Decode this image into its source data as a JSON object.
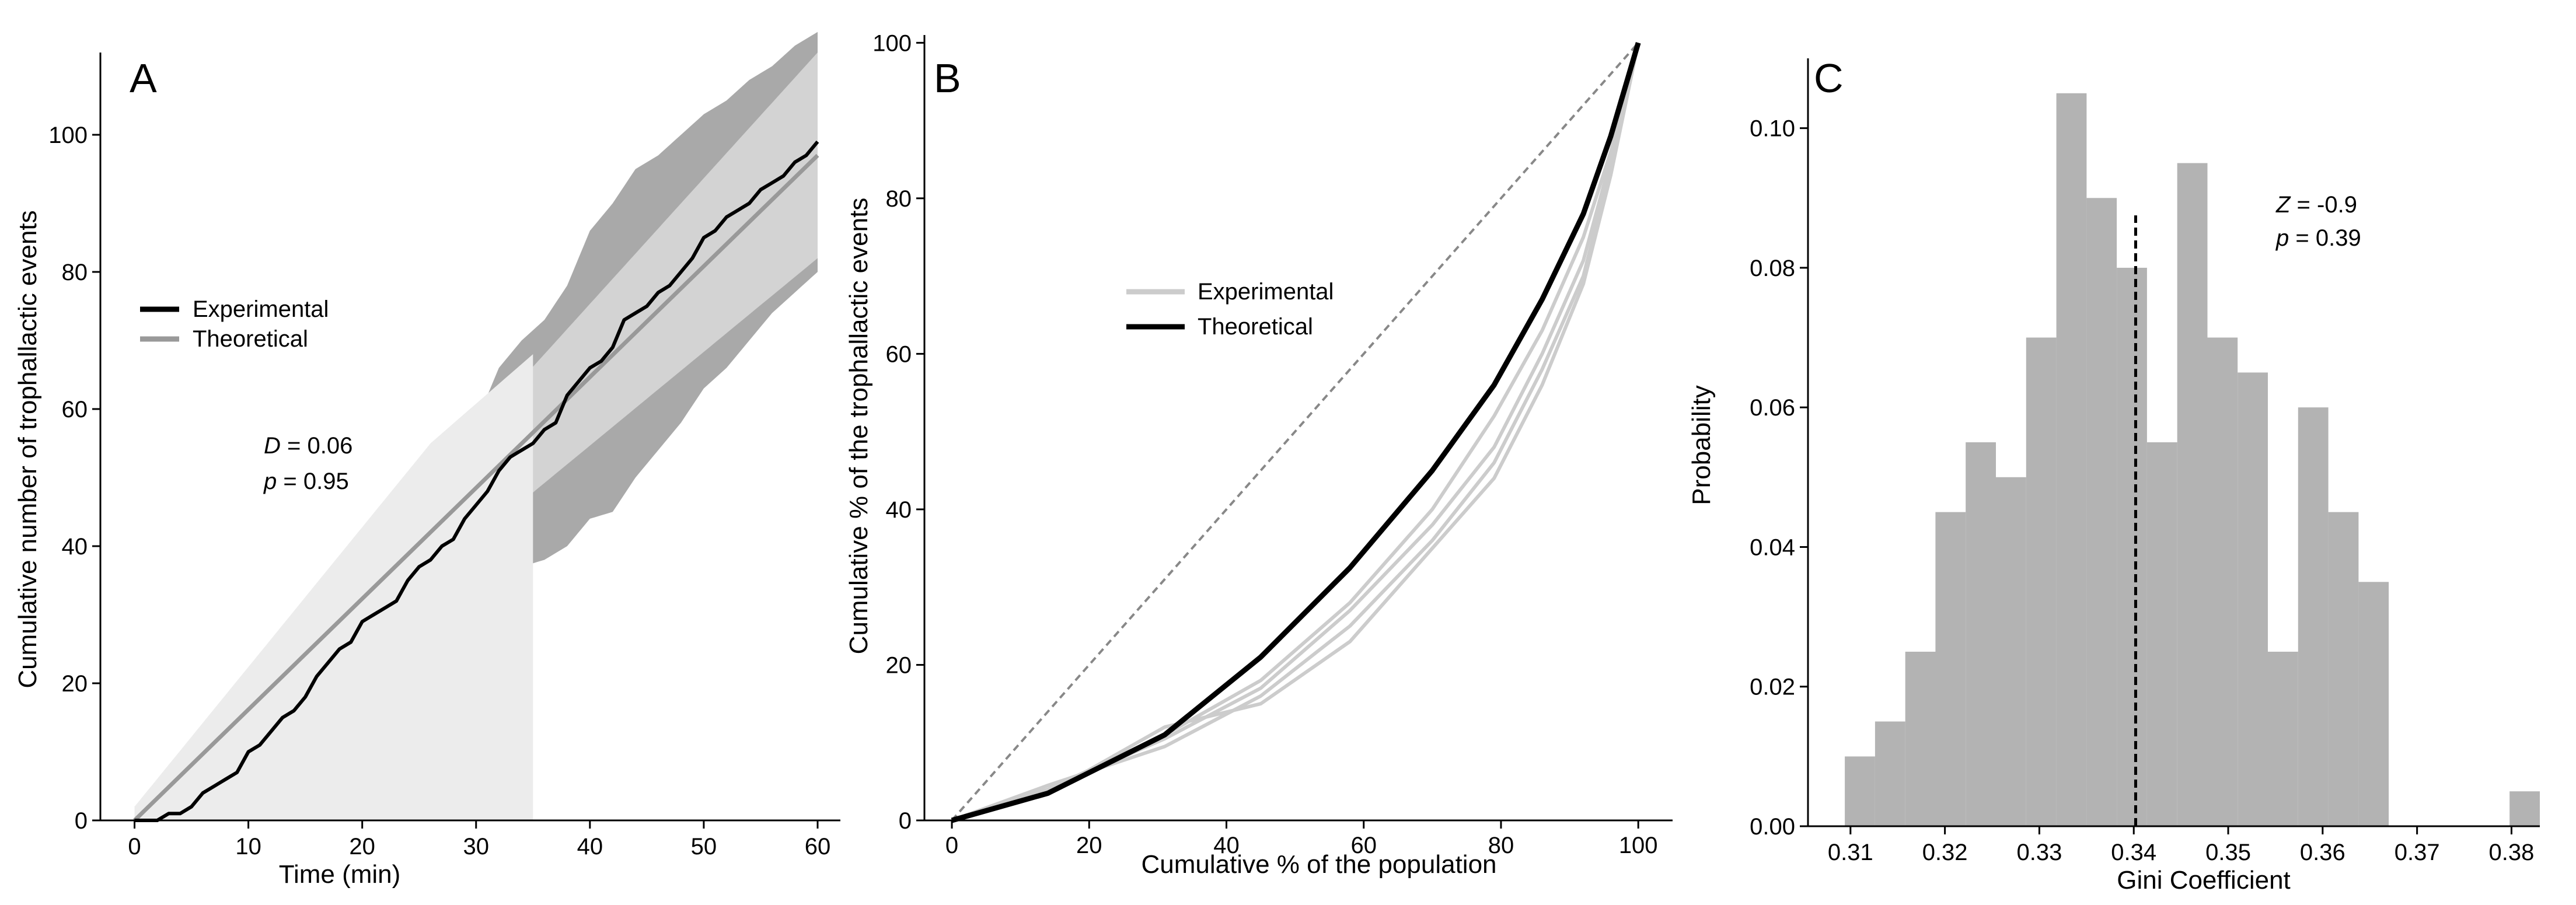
{
  "colors": {
    "axis": "#000000",
    "experimental_line": "#000000",
    "theoretical_line": "#999999",
    "band_dark": "#a9a9a9",
    "band_mid": "#d3d3d3",
    "band_light": "#ececec",
    "lorenz_experimental": "#cccccc",
    "lorenz_theoretical": "#000000",
    "equality_line": "#888888",
    "histogram_bar": "#b3b3b3"
  },
  "chart_data": [
    {
      "type": "line",
      "panel": "A",
      "xlabel": "Time (min)",
      "ylabel": "Cumulative number of trophallactic events",
      "xlim": [
        -3,
        62
      ],
      "ylim": [
        0,
        112
      ],
      "xticks": [
        0,
        10,
        20,
        30,
        40,
        50,
        60
      ],
      "yticks": [
        0,
        20,
        40,
        60,
        80,
        100
      ],
      "legend": {
        "position": "upper-left",
        "entries": [
          "Experimental",
          "Theoretical"
        ]
      },
      "annotation": {
        "D_label": "D",
        "D_text": " = 0.06",
        "p_label": "p",
        "p_text": " = 0.95"
      },
      "series": [
        {
          "name": "Experimental",
          "color": "#000000",
          "x": [
            0,
            2,
            3,
            4,
            5,
            6,
            7,
            8,
            9,
            10,
            11,
            12,
            13,
            14,
            15,
            16,
            17,
            18,
            19,
            20,
            21,
            22,
            23,
            24,
            25,
            26,
            27,
            28,
            29,
            30,
            31,
            32,
            33,
            34,
            35,
            36,
            37,
            38,
            39,
            40,
            41,
            42,
            43,
            44,
            45,
            46,
            47,
            48,
            49,
            50,
            51,
            52,
            53,
            54,
            55,
            56,
            57,
            58,
            59,
            60
          ],
          "y": [
            0,
            0,
            1,
            1,
            2,
            4,
            5,
            6,
            7,
            10,
            11,
            13,
            15,
            16,
            18,
            21,
            23,
            25,
            26,
            29,
            30,
            31,
            32,
            35,
            37,
            38,
            40,
            41,
            44,
            46,
            48,
            51,
            53,
            54,
            55,
            57,
            58,
            62,
            64,
            66,
            67,
            69,
            73,
            74,
            75,
            77,
            78,
            80,
            82,
            85,
            86,
            88,
            89,
            90,
            92,
            93,
            94,
            96,
            97,
            99
          ]
        },
        {
          "name": "Theoretical",
          "color": "#999999",
          "x": [
            0,
            60
          ],
          "y": [
            0,
            97
          ]
        }
      ],
      "bands": [
        {
          "name": "outer-range",
          "color": "#a9a9a9",
          "x": [
            0,
            2,
            4,
            6,
            8,
            10,
            12,
            14,
            16,
            18,
            20,
            22,
            24,
            26,
            28,
            30,
            32,
            34,
            36,
            38,
            40,
            42,
            44,
            46,
            48,
            50,
            52,
            54,
            56,
            58,
            60
          ],
          "upper": [
            2,
            3,
            6,
            10,
            14,
            19,
            25,
            29,
            33,
            38,
            42,
            46,
            50,
            53,
            55,
            58,
            66,
            70,
            73,
            78,
            86,
            90,
            95,
            97,
            100,
            103,
            105,
            108,
            110,
            113,
            115
          ],
          "lower": [
            0,
            0,
            0,
            0,
            0,
            1,
            5,
            7,
            10,
            15,
            19,
            20,
            23,
            27,
            29,
            32,
            35,
            37,
            38,
            40,
            44,
            45,
            50,
            54,
            58,
            63,
            66,
            70,
            74,
            77,
            80
          ]
        },
        {
          "name": "middle-range",
          "color": "#d3d3d3",
          "x": [
            0,
            60
          ],
          "upper": [
            2,
            112
          ],
          "lower": [
            0,
            82
          ]
        },
        {
          "name": "light-range",
          "color": "#ececec",
          "x": [
            0,
            26,
            35
          ],
          "upper": [
            2,
            55,
            68
          ],
          "lower": [
            0,
            0,
            0
          ]
        }
      ]
    },
    {
      "type": "line",
      "panel": "B",
      "xlabel": "Cumulative % of the population",
      "ylabel": "Cumulative % of the trophallactic events",
      "xlim": [
        -4,
        105
      ],
      "ylim": [
        0,
        101
      ],
      "xticks": [
        0,
        20,
        40,
        60,
        80,
        100
      ],
      "yticks": [
        0,
        20,
        40,
        60,
        80,
        100
      ],
      "legend": {
        "position": "upper-center",
        "entries": [
          "Experimental",
          "Theoretical"
        ]
      },
      "equality_line": {
        "x": [
          0,
          100
        ],
        "y": [
          0,
          100
        ]
      },
      "series": [
        {
          "name": "Theoretical",
          "color": "#000000",
          "x": [
            0,
            14,
            31,
            45,
            58,
            70,
            79,
            86,
            92,
            96,
            100
          ],
          "y": [
            0,
            3.5,
            11,
            21,
            32.5,
            45,
            56,
            67,
            78,
            88,
            100
          ]
        },
        {
          "name": "Experimental",
          "color": "#cccccc",
          "x": [
            0,
            14,
            31,
            45,
            58,
            70,
            79,
            86,
            92,
            96,
            100
          ],
          "y": [
            0,
            4.5,
            9.5,
            16,
            25,
            36,
            46,
            58,
            70,
            84,
            100
          ]
        },
        {
          "name": "Experimental",
          "color": "#cccccc",
          "x": [
            0,
            14,
            31,
            45,
            58,
            70,
            79,
            86,
            92,
            96,
            100
          ],
          "y": [
            0,
            4,
            10.5,
            17,
            27,
            38,
            48,
            60,
            72,
            85,
            100
          ]
        },
        {
          "name": "Experimental",
          "color": "#cccccc",
          "x": [
            0,
            14,
            31,
            45,
            58,
            70,
            79,
            86,
            92,
            96,
            100
          ],
          "y": [
            0,
            3.5,
            12,
            15,
            23,
            35,
            44,
            56,
            69,
            83,
            100
          ]
        },
        {
          "name": "Experimental",
          "color": "#cccccc",
          "x": [
            0,
            14,
            31,
            45,
            58,
            70,
            79,
            86,
            92,
            96,
            100
          ],
          "y": [
            0,
            4,
            11,
            18,
            28,
            40,
            52,
            63,
            75,
            86,
            100
          ]
        }
      ]
    },
    {
      "type": "bar",
      "panel": "C",
      "xlabel": "Gini Coefficient",
      "ylabel": "Probability",
      "xlim": [
        0.3055,
        0.383
      ],
      "ylim": [
        0,
        0.11
      ],
      "xticks": [
        0.31,
        0.32,
        0.33,
        0.34,
        0.35,
        0.36,
        0.37,
        0.38
      ],
      "yticks": [
        0.0,
        0.02,
        0.04,
        0.06,
        0.08,
        0.1
      ],
      "bin_width": 0.0032,
      "bin_starts": [
        0.3094,
        0.3126,
        0.3158,
        0.319,
        0.3222,
        0.3254,
        0.3286,
        0.3318,
        0.335,
        0.3382,
        0.3414,
        0.3446,
        0.3478,
        0.351,
        0.3542,
        0.3574,
        0.3606,
        0.3638,
        0.367,
        0.3702,
        0.3734,
        0.3766,
        0.3798
      ],
      "values": [
        0.01,
        0.015,
        0.025,
        0.045,
        0.055,
        0.05,
        0.07,
        0.105,
        0.09,
        0.08,
        0.055,
        0.095,
        0.07,
        0.065,
        0.025,
        0.06,
        0.045,
        0.035,
        0,
        0,
        0,
        0,
        0.005
      ],
      "reference_line": {
        "x": 0.3402,
        "y_top": 0.0875
      },
      "annotation": {
        "Z_label": "Z",
        "Z_text": " = -0.9",
        "p_label": "p",
        "p_text": " = 0.39"
      }
    }
  ],
  "panels": {
    "a": {
      "letter": "A",
      "xlabel": "Time (min)",
      "ylabel": "Cumulative number of trophallactic events",
      "legend": [
        "Experimental",
        "Theoretical"
      ],
      "annot_D": "D",
      "annot_D_rest": " = 0.06",
      "annot_p": "p",
      "annot_p_rest": " = 0.95"
    },
    "b": {
      "letter": "B",
      "xlabel": "Cumulative % of the population",
      "ylabel": "Cumulative % of the trophallactic events",
      "legend": [
        "Experimental",
        "Theoretical"
      ]
    },
    "c": {
      "letter": "C",
      "xlabel": "Gini Coefficient",
      "ylabel": "Probability",
      "annot_Z": "Z",
      "annot_Z_rest": " = -0.9",
      "annot_p": "p",
      "annot_p_rest": " = 0.39"
    }
  }
}
